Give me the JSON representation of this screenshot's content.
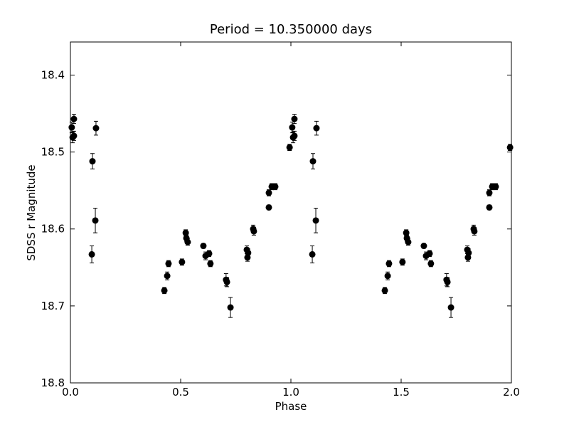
{
  "chart_data": {
    "type": "errorbar",
    "title": "Period = 10.350000 days",
    "x_label": "Phase",
    "y_label": "SDSS r Magnitude",
    "color": "#000000",
    "x": [
      0.006,
      0.016,
      0.01,
      0.016,
      0.1,
      0.116,
      0.113,
      0.097,
      0.426,
      0.439,
      0.445,
      0.506,
      0.523,
      0.526,
      0.532,
      0.603,
      0.613,
      0.629,
      0.635,
      0.706,
      0.71,
      0.726,
      0.8,
      0.803,
      0.806,
      0.829,
      0.832,
      0.9,
      0.9,
      0.913,
      0.929,
      0.994,
      1.006,
      1.016,
      1.01,
      1.016,
      1.1,
      1.116,
      1.113,
      1.097,
      1.426,
      1.439,
      1.445,
      1.506,
      1.523,
      1.526,
      1.532,
      1.603,
      1.613,
      1.629,
      1.635,
      1.706,
      1.71,
      1.726,
      1.8,
      1.803,
      1.806,
      1.829,
      1.832,
      1.9,
      1.9,
      1.913,
      1.929,
      1.994
    ],
    "values": [
      18.468,
      18.457,
      18.481,
      18.479,
      18.512,
      18.469,
      18.589,
      18.633,
      18.68,
      18.661,
      18.645,
      18.643,
      18.605,
      18.612,
      18.617,
      18.622,
      18.635,
      18.632,
      18.645,
      18.666,
      18.669,
      18.702,
      18.627,
      18.637,
      18.631,
      18.6,
      18.603,
      18.553,
      18.572,
      18.545,
      18.545,
      18.494,
      18.468,
      18.457,
      18.481,
      18.479,
      18.512,
      18.469,
      18.589,
      18.633,
      18.68,
      18.661,
      18.645,
      18.643,
      18.605,
      18.612,
      18.617,
      18.622,
      18.635,
      18.632,
      18.645,
      18.666,
      18.669,
      18.702,
      18.627,
      18.637,
      18.631,
      18.6,
      18.603,
      18.553,
      18.572,
      18.545,
      18.545,
      18.494
    ],
    "errors": [
      0.007,
      0.006,
      0.007,
      0.006,
      0.01,
      0.009,
      0.016,
      0.011,
      0.004,
      0.005,
      0.004,
      0.004,
      0.004,
      0.004,
      0.004,
      0.003,
      0.005,
      0.004,
      0.004,
      0.008,
      0.006,
      0.013,
      0.005,
      0.005,
      0.005,
      0.005,
      0.005,
      0.004,
      0.003,
      0.004,
      0.004,
      0.004,
      0.007,
      0.006,
      0.007,
      0.006,
      0.01,
      0.009,
      0.016,
      0.011,
      0.004,
      0.005,
      0.004,
      0.004,
      0.004,
      0.004,
      0.004,
      0.003,
      0.005,
      0.004,
      0.004,
      0.008,
      0.006,
      0.013,
      0.005,
      0.005,
      0.005,
      0.005,
      0.005,
      0.004,
      0.003,
      0.004,
      0.004,
      0.004
    ],
    "xlim": [
      0,
      2
    ],
    "xticks": [
      {
        "value": 0,
        "label": "0.0"
      },
      0.5,
      {
        "value": 1,
        "label": "1.0"
      },
      1.5,
      {
        "value": 2,
        "label": "2.0"
      }
    ],
    "ylim": [
      18.8,
      18.357
    ],
    "yticks": [
      18.4,
      18.5,
      18.6,
      18.7,
      18.8
    ]
  }
}
